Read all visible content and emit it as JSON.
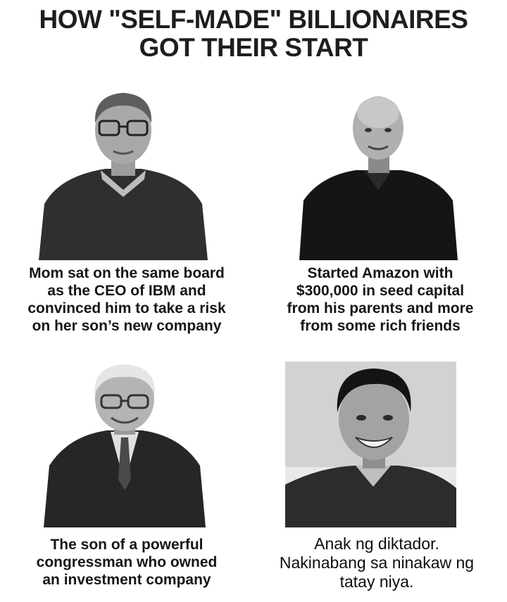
{
  "title": {
    "line1": "HOW \"SELF-MADE\" BILLIONAIRES",
    "line2": "GOT THEIR START"
  },
  "panels": [
    {
      "caption": [
        "Mom sat on the same board",
        "as the CEO of IBM and",
        "convinced him to take a risk",
        "on her son’s new company"
      ]
    },
    {
      "caption": [
        "Started Amazon with",
        "$300,000 in seed capital",
        "from his parents and more",
        "from some rich friends"
      ]
    },
    {
      "caption": [
        "The son of a powerful",
        "congressman who owned",
        "an investment company"
      ]
    },
    {
      "caption": [
        "Anak ng diktador.",
        "Nakinabang sa ninakaw ng",
        "tatay niya."
      ]
    }
  ]
}
